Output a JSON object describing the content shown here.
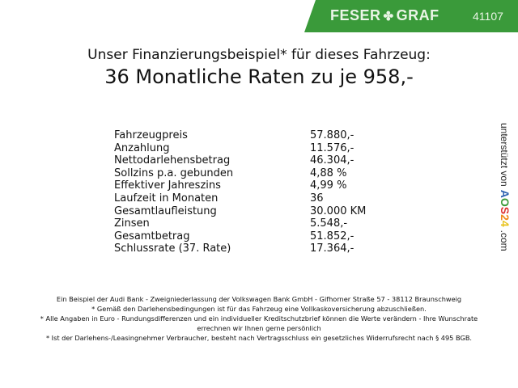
{
  "header": {
    "brand_left": "FESER",
    "brand_right": "GRAF",
    "logo_icon": "clover-icon",
    "dealer_code": "41107",
    "brand_color": "#3a9a3a"
  },
  "title": {
    "line1": "Unser Finanzierungsbeispiel* für dieses Fahrzeug:",
    "line2": "36 Monatliche Raten zu je 958,-"
  },
  "rows": [
    {
      "label": "Fahrzeugpreis",
      "value": "57.880,-"
    },
    {
      "label": "Anzahlung",
      "value": "11.576,-"
    },
    {
      "label": "Nettodarlehensbetrag",
      "value": "46.304,-"
    },
    {
      "label": "Sollzins p.a. gebunden",
      "value": "4,88 %"
    },
    {
      "label": "Effektiver Jahreszins",
      "value": "4,99 %"
    },
    {
      "label": "Laufzeit in Monaten",
      "value": "36"
    },
    {
      "label": "Gesamtlaufleistung",
      "value": "30.000 KM"
    },
    {
      "label": "Zinsen",
      "value": "5.548,-"
    },
    {
      "label": "Gesamtbetrag",
      "value": "51.852,-"
    },
    {
      "label": "Schlussrate (37. Rate)",
      "value": "17.364,-"
    }
  ],
  "side": {
    "text": "unterstützt von",
    "logo": "AOS24",
    "suffix": ".com"
  },
  "footer": [
    "Ein Beispiel der Audi Bank - Zweigniederlassung der Volkswagen Bank GmbH - Gifhorner Straße 57 - 38112 Braunschweig",
    "* Gemäß den Darlehensbedingungen ist für das Fahrzeug eine Vollkaskoversicherung abzuschließen.",
    "* Alle Angaben in Euro - Rundungsdifferenzen und ein individueller Kreditschutzbrief können die Werte verändern - Ihre Wunschrate errechnen wir Ihnen gerne persönlich",
    "* Ist der Darlehens-/Leasingnehmer Verbraucher, besteht nach Vertragsschluss ein gesetzliches Widerrufsrecht nach § 495 BGB."
  ]
}
